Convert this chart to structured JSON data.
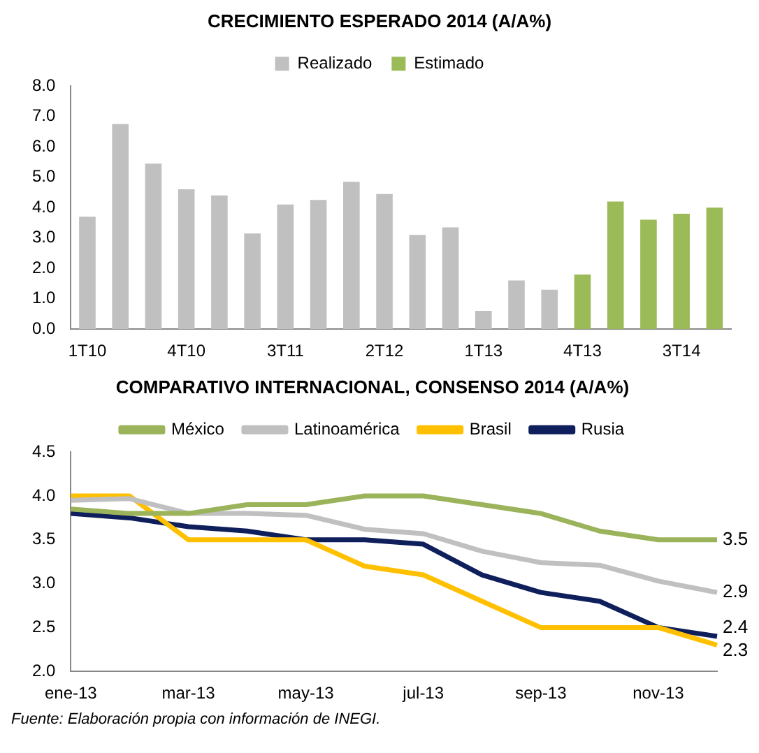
{
  "chart_data": [
    {
      "type": "bar",
      "title": "CRECIMIENTO ESPERADO 2014 (A/A%)",
      "categories": [
        "1T10",
        null,
        null,
        "4T10",
        null,
        null,
        "3T11",
        null,
        null,
        "2T12",
        null,
        null,
        "1T13",
        null,
        null,
        "4T13",
        null,
        null,
        "3T14",
        null
      ],
      "series": [
        {
          "name": "Realizado",
          "color": "#c0c0c0",
          "values": [
            3.7,
            6.75,
            5.45,
            4.6,
            4.4,
            3.15,
            4.1,
            4.25,
            4.85,
            4.45,
            3.1,
            3.35,
            0.6,
            1.6,
            1.3,
            null,
            null,
            null,
            null,
            null
          ]
        },
        {
          "name": "Estimado",
          "color": "#9bbb59",
          "values": [
            null,
            null,
            null,
            null,
            null,
            null,
            null,
            null,
            null,
            null,
            null,
            null,
            null,
            null,
            null,
            1.8,
            4.2,
            3.6,
            3.8,
            4.0
          ]
        }
      ],
      "ylim": [
        0,
        8
      ],
      "yticks": [
        {
          "value": 0,
          "label": "0.0"
        },
        {
          "value": 1,
          "label": "1.0"
        },
        {
          "value": 2,
          "label": "2.0"
        },
        {
          "value": 3,
          "label": "3.0"
        },
        {
          "value": 4,
          "label": "4.0"
        },
        {
          "value": 5,
          "label": "5.0"
        },
        {
          "value": 6,
          "label": "6.0"
        },
        {
          "value": 7,
          "label": "7.0"
        },
        {
          "value": 8,
          "label": "8.0"
        }
      ],
      "grid": false,
      "legend": "top"
    },
    {
      "type": "line",
      "title": "COMPARATIVO INTERNACIONAL, CONSENSO 2014 (A/A%)",
      "categories": [
        "ene-13",
        null,
        "mar-13",
        null,
        "may-13",
        null,
        "jul-13",
        null,
        "sep-13",
        null,
        "nov-13",
        null
      ],
      "series": [
        {
          "name": "México",
          "color": "#9bb35a",
          "values": [
            3.85,
            3.8,
            3.8,
            3.9,
            3.9,
            4.0,
            4.0,
            3.9,
            3.8,
            3.6,
            3.5,
            3.5
          ],
          "value_labels": [
            null,
            null,
            null,
            null,
            null,
            null,
            null,
            null,
            null,
            null,
            null,
            "3.5"
          ]
        },
        {
          "name": "Latinoamérica",
          "color": "#c0c0c0",
          "values": [
            3.95,
            3.97,
            3.8,
            3.8,
            3.78,
            3.62,
            3.57,
            3.37,
            3.24,
            3.21,
            3.03,
            2.9
          ],
          "value_labels": [
            null,
            null,
            null,
            null,
            null,
            null,
            null,
            null,
            null,
            null,
            null,
            "2.9"
          ]
        },
        {
          "name": "Brasil",
          "color": "#ffc000",
          "values": [
            4.0,
            4.0,
            3.5,
            3.5,
            3.5,
            3.2,
            3.1,
            2.8,
            2.5,
            2.5,
            2.5,
            2.3
          ],
          "value_labels": [
            null,
            null,
            null,
            null,
            null,
            null,
            null,
            null,
            null,
            null,
            null,
            "2.3"
          ]
        },
        {
          "name": "Rusia",
          "color": "#0f1f5c",
          "values": [
            3.8,
            3.75,
            3.65,
            3.6,
            3.5,
            3.5,
            3.45,
            3.1,
            2.9,
            2.8,
            2.5,
            2.4
          ],
          "value_labels": [
            null,
            null,
            null,
            null,
            null,
            null,
            null,
            null,
            null,
            null,
            null,
            "2.4"
          ]
        }
      ],
      "ylim": [
        2,
        4.5
      ],
      "yticks": [
        {
          "value": 2,
          "label": "2.0"
        },
        {
          "value": 2.5,
          "label": "2.5"
        },
        {
          "value": 3,
          "label": "3.0"
        },
        {
          "value": 3.5,
          "label": "3.5"
        },
        {
          "value": 4,
          "label": "4.0"
        },
        {
          "value": 4.5,
          "label": "4.5"
        }
      ],
      "grid": false,
      "legend": "top",
      "marker": "none",
      "line_style": "solid",
      "annotations": [
        "Fuente: Elaboración propia con información de INEGI."
      ]
    }
  ]
}
